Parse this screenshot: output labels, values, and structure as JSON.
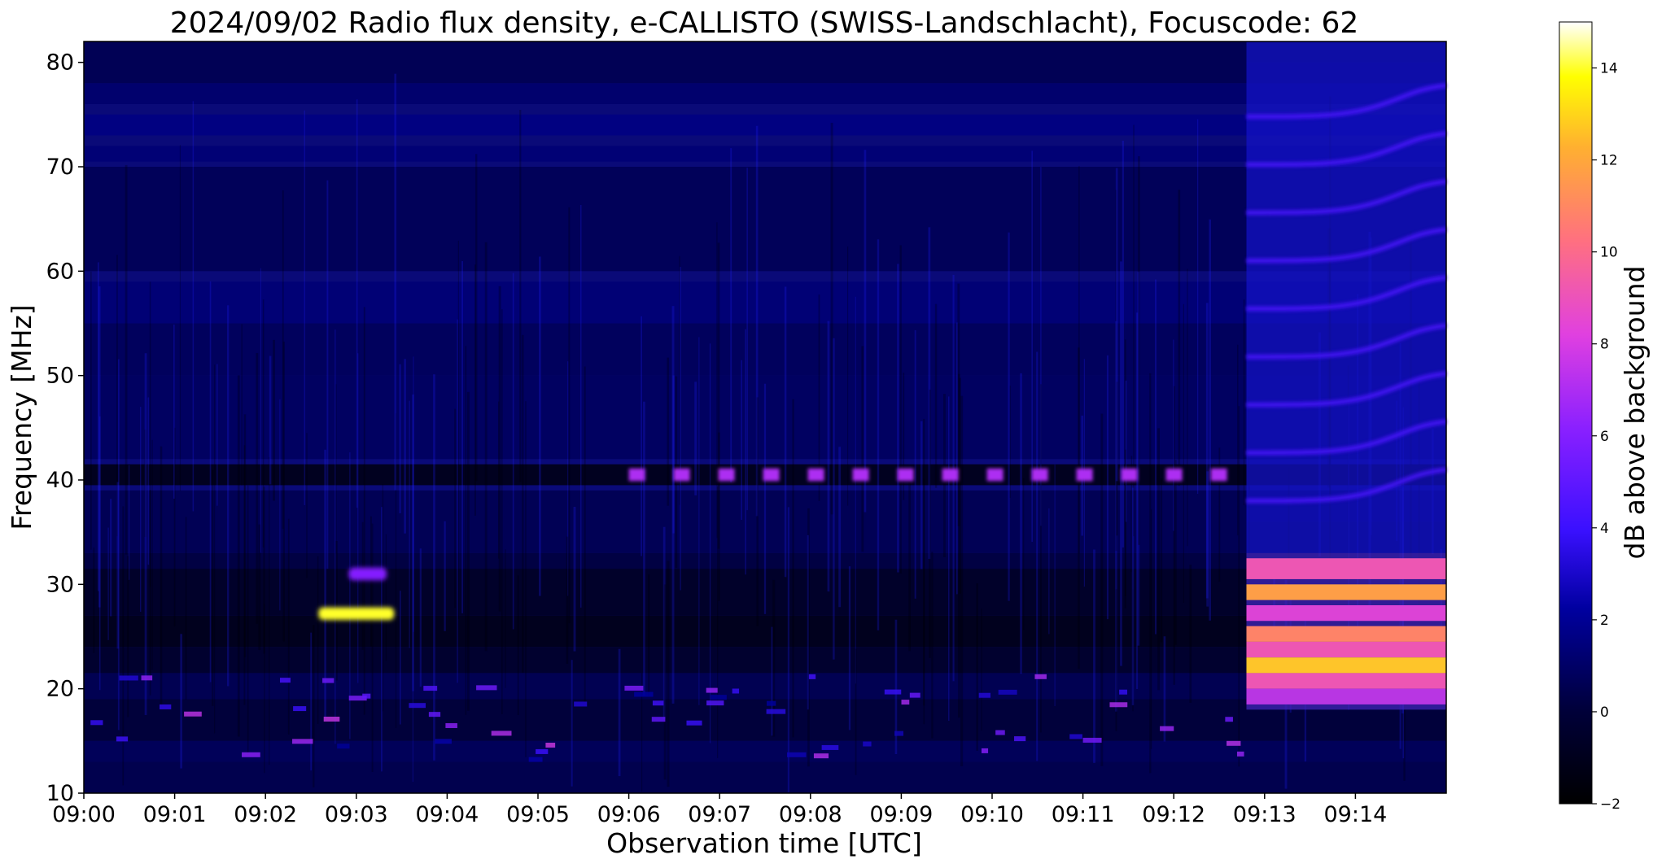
{
  "chart_data": {
    "type": "heatmap",
    "title": "2024/09/02  Radio flux density, e-CALLISTO (SWISS-Landschlacht), Focuscode: 62",
    "xlabel": "Observation time [UTC]",
    "ylabel": "Frequency [MHz]",
    "x_ticks": [
      "09:00",
      "09:01",
      "09:02",
      "09:03",
      "09:04",
      "09:05",
      "09:06",
      "09:07",
      "09:08",
      "09:09",
      "09:10",
      "09:11",
      "09:12",
      "09:13",
      "09:14"
    ],
    "xlim": [
      "09:00:00",
      "09:15:00"
    ],
    "ylim": [
      10,
      82
    ],
    "y_ticks": [
      10,
      20,
      30,
      40,
      50,
      60,
      70,
      80
    ],
    "colorbar": {
      "label": "dB above background",
      "colormap": "gnuplot2",
      "range": [
        -2,
        15
      ],
      "ticks": [
        -2,
        0,
        2,
        4,
        6,
        8,
        10,
        12,
        14
      ]
    },
    "features": [
      {
        "label": "narrowband emission",
        "t_start": "09:02:35",
        "t_end": "09:03:25",
        "freq_mhz": 27.2,
        "db": 14
      },
      {
        "label": "narrowband emission",
        "t_start": "09:02:55",
        "t_end": "09:03:20",
        "freq_mhz": 31,
        "db": 6
      },
      {
        "label": "intermittent carrier",
        "t_start": "09:06:00",
        "t_end": "09:12:45",
        "freq_mhz": 40.5,
        "db": 7
      },
      {
        "label": "broadband enhancement",
        "t_start": "09:12:48",
        "t_end": "09:15:00",
        "freq_min_mhz": 18,
        "freq_max_mhz": 33,
        "db": 10
      },
      {
        "label": "banded structure",
        "t_start": "09:12:48",
        "t_end": "09:15:00",
        "freq_min_mhz": 36,
        "freq_max_mhz": 80,
        "db": 3
      }
    ]
  }
}
